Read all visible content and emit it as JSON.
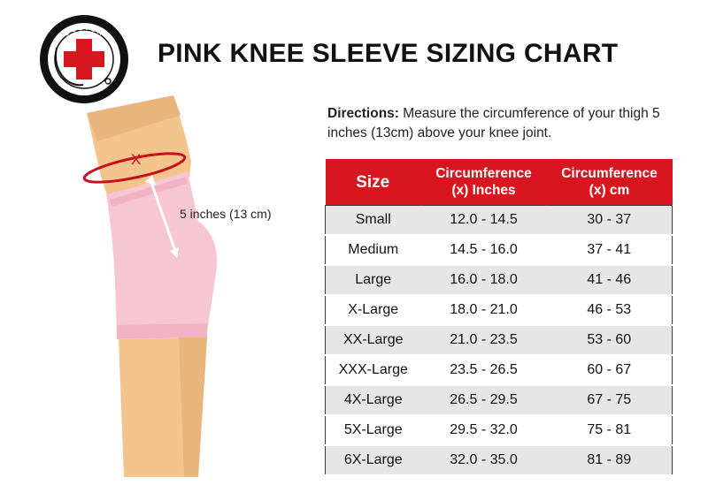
{
  "title": "PINK KNEE SLEEVE SIZING CHART",
  "logo": {
    "top_text": "DOCTOR",
    "bottom_text": "ARTHRITIS",
    "colors": {
      "ring": "#111111",
      "cross": "#d7161f"
    }
  },
  "illustration": {
    "marker": "X",
    "measure_label": "5 inches (13 cm)",
    "colors": {
      "skin": "#f3c48e",
      "sleeve": "#f6c7d3",
      "measure_line": "#c8101c"
    }
  },
  "directions": {
    "label": "Directions:",
    "text": " Measure the circumference of your thigh 5 inches (13cm) above your knee joint."
  },
  "table": {
    "header_color": "#d7161f",
    "headers": [
      {
        "line1": "Size",
        "line2": ""
      },
      {
        "line1": "Circumference",
        "line2": "(x) Inches"
      },
      {
        "line1": "Circumference",
        "line2": "(x) cm"
      }
    ],
    "rows": [
      {
        "size": "Small",
        "inches": "12.0 - 14.5",
        "cm": "30 - 37"
      },
      {
        "size": "Medium",
        "inches": "14.5 - 16.0",
        "cm": "37 - 41"
      },
      {
        "size": "Large",
        "inches": "16.0 - 18.0",
        "cm": "41 - 46"
      },
      {
        "size": "X-Large",
        "inches": "18.0 - 21.0",
        "cm": "46 - 53"
      },
      {
        "size": "XX-Large",
        "inches": "21.0 - 23.5",
        "cm": "53 - 60"
      },
      {
        "size": "XXX-Large",
        "inches": "23.5 - 26.5",
        "cm": "60 - 67"
      },
      {
        "size": "4X-Large",
        "inches": "26.5 - 29.5",
        "cm": "67 - 75"
      },
      {
        "size": "5X-Large",
        "inches": "29.5 - 32.0",
        "cm": "75 - 81"
      },
      {
        "size": "6X-Large",
        "inches": "32.0 - 35.0",
        "cm": "81 - 89"
      }
    ]
  }
}
